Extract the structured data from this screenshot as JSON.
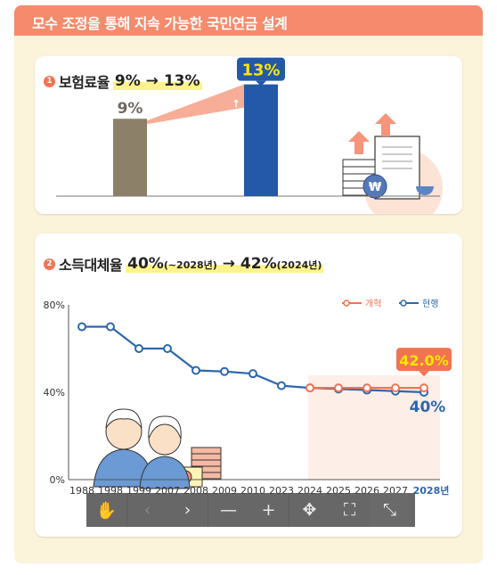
{
  "header": {
    "title": "모수 조정을 통해 지속 가능한 국민연금 설계"
  },
  "section1": {
    "number": "1",
    "label": "보험료율",
    "highlight": "9% → 13%"
  },
  "section2": {
    "number": "2",
    "label": "소득대체율",
    "hl_main1": "40%",
    "hl_small1": "(~2028년)",
    "hl_arrow": " → ",
    "hl_main2": "42%",
    "hl_small2": "(2024년)"
  },
  "colors": {
    "accent_orange": "#f27352",
    "current_blue": "#2d67ad",
    "old_bar": "#8c8068",
    "new_bar": "#2359a8",
    "highlight_yellow": "#fdf38b",
    "label_yellow": "#ffe600"
  },
  "chart_data": [
    {
      "type": "bar",
      "categories": [
        "",
        ""
      ],
      "values": [
        9,
        13
      ],
      "value_labels": [
        "9%",
        "13%"
      ],
      "ylim": [
        0,
        14
      ]
    },
    {
      "type": "line",
      "x": [
        "1988",
        "1998",
        "1999",
        "2007",
        "2008",
        "2009",
        "2010",
        "2023",
        "2024",
        "2025",
        "2026",
        "2027",
        "2028년"
      ],
      "y_ticks": [
        "0%",
        "40%",
        "80%"
      ],
      "ylim": [
        0,
        80
      ],
      "series": [
        {
          "name": "현행",
          "color": "#2d67ad",
          "values": [
            70,
            70,
            60,
            60,
            50,
            49.5,
            48.5,
            43,
            42,
            41.5,
            41,
            40.5,
            40
          ]
        },
        {
          "name": "개혁",
          "color": "#f27352",
          "values": [
            null,
            null,
            null,
            null,
            null,
            null,
            null,
            null,
            42,
            42,
            42,
            42,
            42
          ]
        }
      ],
      "annotations": {
        "reform_label": "42.0%",
        "current_label": "40%"
      },
      "legend": "top-right"
    }
  ],
  "toolbar": {
    "icons": [
      "hand-icon",
      "chevron-left-icon",
      "chevron-right-icon",
      "zoom-out-icon",
      "zoom-in-icon",
      "move-icon",
      "expand-icon",
      "collapse-icon"
    ]
  }
}
